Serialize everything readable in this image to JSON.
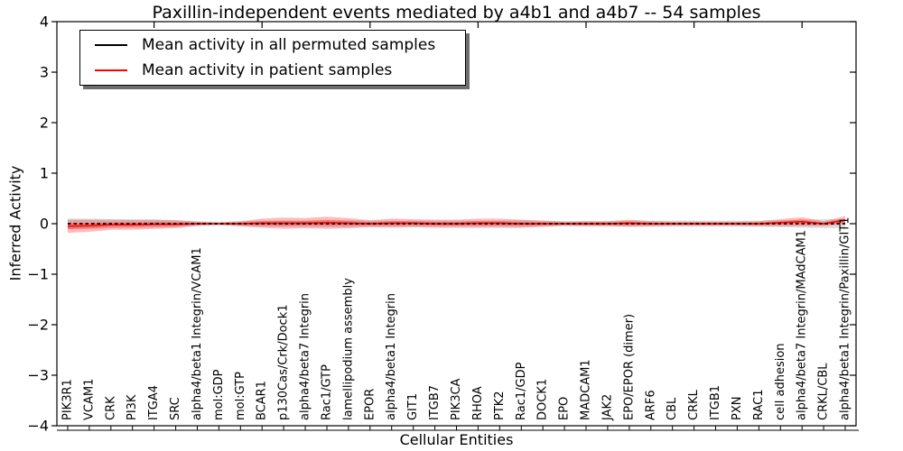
{
  "chart_data": {
    "type": "line",
    "title": "Paxillin-independent events mediated by a4b1 and a4b7 -- 54 samples",
    "xlabel": "Cellular Entities",
    "ylabel": "Inferred Activity",
    "ylim": [
      -4,
      4
    ],
    "ytick_values": [
      4,
      3,
      2,
      1,
      0,
      -1,
      -2,
      -3,
      -4
    ],
    "ytick_labels": [
      "4",
      "3",
      "2",
      "1",
      "0",
      "−1",
      "−2",
      "−3",
      "−4"
    ],
    "grid": false,
    "legend_position": "upper left",
    "sample_count": 54,
    "categories": [
      "PIK3R1",
      "VCAM1",
      "CRK",
      "PI3K",
      "ITGA4",
      "SRC",
      "alpha4/beta1 Integrin/VCAM1",
      "mol:GDP",
      "mol:GTP",
      "BCAR1",
      "p130Cas/Crk/Dock1",
      "alpha4/beta7 Integrin",
      "Rac1/GTP",
      "lamellipodium assembly",
      "EPOR",
      "alpha4/beta1 Integrin",
      "GIT1",
      "ITGB7",
      "PIK3CA",
      "RHOA",
      "PTK2",
      "Rac1/GDP",
      "DOCK1",
      "EPO",
      "MADCAM1",
      "JAK2",
      "EPO/EPOR (dimer)",
      "ARF6",
      "CBL",
      "CRKL",
      "ITGB1",
      "PXN",
      "RAC1",
      "cell adhesion",
      "alpha4/beta7 Integrin/MAdCAM1",
      "CRKL/CBL",
      "alpha4/beta1 Integrin/Paxillin/GIT1"
    ],
    "series": [
      {
        "name": "Mean activity in all permuted samples",
        "color": "#000000",
        "band_color": "#8c8c8c",
        "values": [
          0,
          0,
          0,
          0,
          0,
          0,
          0,
          0,
          0,
          0,
          0,
          0,
          0,
          0,
          0,
          0,
          0,
          0,
          0,
          0,
          0,
          0,
          0,
          0,
          0,
          0,
          0,
          0,
          0,
          0,
          0,
          0,
          0,
          0,
          0,
          0,
          0
        ],
        "band_halfwidth": [
          0.1,
          0.1,
          0.09,
          0.08,
          0.08,
          0.07,
          0.05,
          0.04,
          0.05,
          0.06,
          0.06,
          0.06,
          0.07,
          0.07,
          0.06,
          0.06,
          0.06,
          0.06,
          0.06,
          0.06,
          0.06,
          0.07,
          0.06,
          0.05,
          0.05,
          0.05,
          0.06,
          0.06,
          0.06,
          0.06,
          0.06,
          0.06,
          0.06,
          0.07,
          0.08,
          0.09,
          0.09
        ]
      },
      {
        "name": "Mean activity in patient samples",
        "color": "#ff0000",
        "band_color": "#ff0000",
        "values": [
          -0.05,
          -0.04,
          -0.02,
          -0.02,
          -0.01,
          -0.01,
          0,
          0,
          0,
          0.01,
          0.01,
          0.01,
          0.02,
          0.01,
          0,
          0.01,
          0.01,
          0,
          0,
          0.01,
          0.01,
          0,
          0,
          0,
          0,
          0,
          0.01,
          0,
          0,
          0,
          0,
          0,
          0,
          0.02,
          0.04,
          0,
          0.07
        ],
        "band_halfwidth": [
          0.13,
          0.12,
          0.1,
          0.1,
          0.09,
          0.08,
          0.04,
          0.02,
          0.05,
          0.09,
          0.11,
          0.1,
          0.12,
          0.1,
          0.07,
          0.09,
          0.08,
          0.08,
          0.08,
          0.09,
          0.09,
          0.08,
          0.06,
          0.04,
          0.05,
          0.05,
          0.07,
          0.05,
          0.04,
          0.04,
          0.04,
          0.04,
          0.05,
          0.07,
          0.09,
          0.05,
          0.08
        ]
      }
    ]
  }
}
